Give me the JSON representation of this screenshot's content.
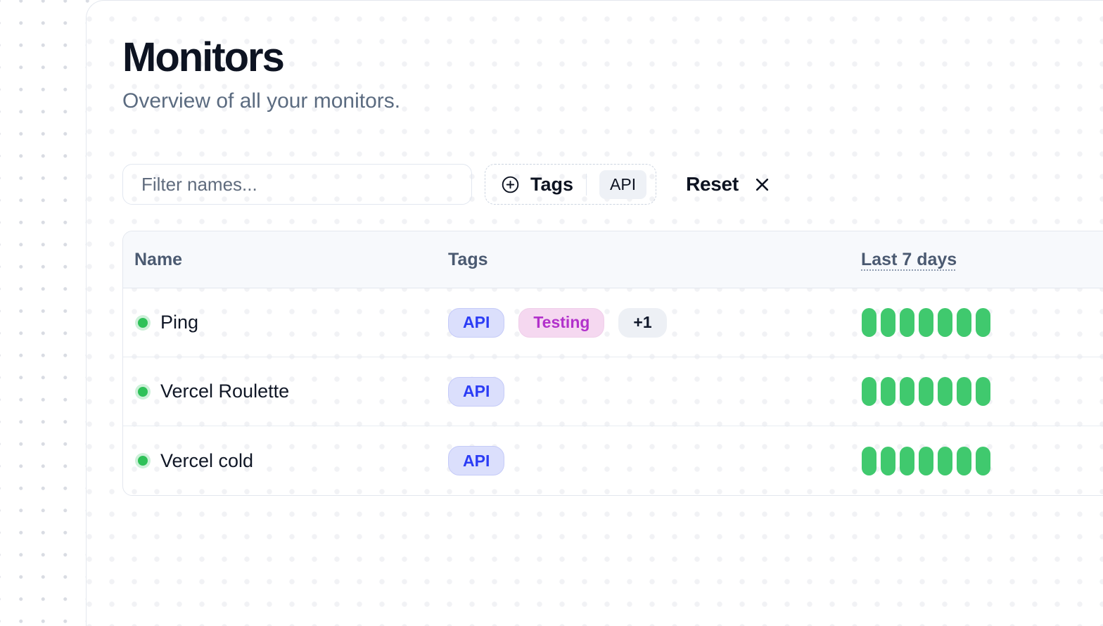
{
  "page": {
    "title": "Monitors",
    "subtitle": "Overview of all your monitors."
  },
  "toolbar": {
    "filter_placeholder": "Filter names...",
    "tags_label": "Tags",
    "tags_selected": [
      "API"
    ],
    "reset_label": "Reset"
  },
  "table": {
    "columns": [
      {
        "label": "Name"
      },
      {
        "label": "Tags"
      },
      {
        "label": "Last 7 days",
        "style": "dotted-underline"
      }
    ],
    "rows": [
      {
        "name": "Ping",
        "status": "up",
        "tags": [
          {
            "label": "API",
            "variant": "blue"
          },
          {
            "label": "Testing",
            "variant": "pink"
          },
          {
            "label": "+1",
            "variant": "gray"
          }
        ],
        "last7days": [
          "up",
          "up",
          "up",
          "up",
          "up",
          "up",
          "up"
        ]
      },
      {
        "name": "Vercel Roulette",
        "status": "up",
        "tags": [
          {
            "label": "API",
            "variant": "blue"
          }
        ],
        "last7days": [
          "up",
          "up",
          "up",
          "up",
          "up",
          "up",
          "up"
        ]
      },
      {
        "name": "Vercel cold",
        "status": "up",
        "tags": [
          {
            "label": "API",
            "variant": "blue"
          }
        ],
        "last7days": [
          "up",
          "up",
          "up",
          "up",
          "up",
          "up",
          "up"
        ]
      }
    ]
  },
  "colors": {
    "status_up_dot": "#2ec158",
    "status_up_ring": "#cdf0d9",
    "uptime_bar": "#40c96e",
    "tag_blue_bg": "#dbdffc",
    "tag_blue_text": "#2b3cf5",
    "tag_pink_bg": "#f5d8f0",
    "tag_pink_text": "#b231cb",
    "tag_gray_bg": "#edf0f5",
    "header_bg": "#f7f9fc",
    "border": "#e3e7ee",
    "title_text": "#0d1321",
    "subtitle_text": "#5b6b80"
  }
}
